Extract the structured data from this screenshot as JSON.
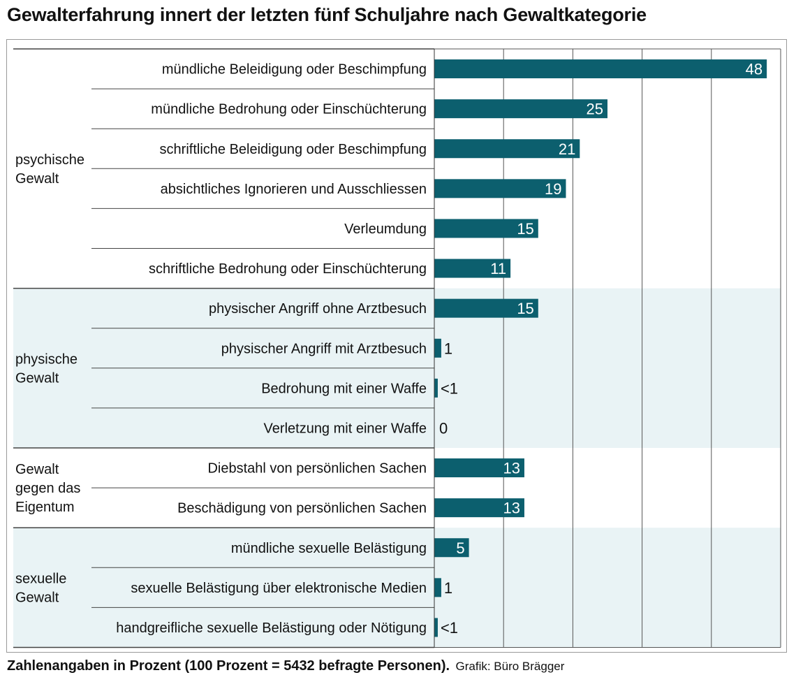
{
  "title": "Gewalterfahrung innert der letzten fünf Schuljahre nach Gewaltkategorie",
  "footer": {
    "note": "Zahlenangaben in Prozent (100 Prozent = 5432 befragte Personen).",
    "credit": "Grafik: Büro Brägger"
  },
  "colors": {
    "bar": "#0c5f6e",
    "band": "#e9f3f5",
    "grid": "#555555",
    "value_inside": "#ffffff",
    "value_outside": "#111111"
  },
  "chart_data": {
    "type": "bar",
    "orientation": "horizontal",
    "title": "Gewalterfahrung innert der letzten fünf Schuljahre nach Gewaltkategorie",
    "xlabel": "Prozent",
    "ylabel": "",
    "xlim": [
      0,
      50
    ],
    "grid": true,
    "grid_step": 10,
    "unit": "%",
    "groups": [
      {
        "name": "psychische Gewalt",
        "label_lines": [
          "psychische",
          "Gewalt"
        ],
        "shaded": false,
        "items": [
          {
            "label": "mündliche Beleidigung oder Beschimpfung",
            "value": 48,
            "display": "48"
          },
          {
            "label": "mündliche Bedrohung oder Einschüchterung",
            "value": 25,
            "display": "25"
          },
          {
            "label": "schriftliche Beleidigung oder Beschimpfung",
            "value": 21,
            "display": "21"
          },
          {
            "label": "absichtliches Ignorieren und Ausschliessen",
            "value": 19,
            "display": "19"
          },
          {
            "label": "Verleumdung",
            "value": 15,
            "display": "15"
          },
          {
            "label": "schriftliche Bedrohung oder Einschüchterung",
            "value": 11,
            "display": "11"
          }
        ]
      },
      {
        "name": "physische Gewalt",
        "label_lines": [
          "physische",
          "Gewalt"
        ],
        "shaded": true,
        "items": [
          {
            "label": "physischer Angriff ohne Arztbesuch",
            "value": 15,
            "display": "15"
          },
          {
            "label": "physischer Angriff mit Arztbesuch",
            "value": 1,
            "display": "1"
          },
          {
            "label": "Bedrohung mit einer Waffe",
            "value": 0.5,
            "display": "<1"
          },
          {
            "label": "Verletzung mit einer Waffe",
            "value": 0,
            "display": "0"
          }
        ]
      },
      {
        "name": "Gewalt gegen das Eigentum",
        "label_lines": [
          "Gewalt",
          "gegen das",
          "Eigentum"
        ],
        "shaded": false,
        "items": [
          {
            "label": "Diebstahl von persönlichen Sachen",
            "value": 13,
            "display": "13"
          },
          {
            "label": "Beschädigung von persönlichen Sachen",
            "value": 13,
            "display": "13"
          }
        ]
      },
      {
        "name": "sexuelle Gewalt",
        "label_lines": [
          "sexuelle",
          "Gewalt"
        ],
        "shaded": true,
        "items": [
          {
            "label": "mündliche sexuelle Belästigung",
            "value": 5,
            "display": "5"
          },
          {
            "label": "sexuelle Belästigung über elektronische Medien",
            "value": 1,
            "display": "1"
          },
          {
            "label": "handgreifliche sexuelle Belästigung oder Nötigung",
            "value": 0.5,
            "display": "<1"
          }
        ]
      }
    ]
  }
}
